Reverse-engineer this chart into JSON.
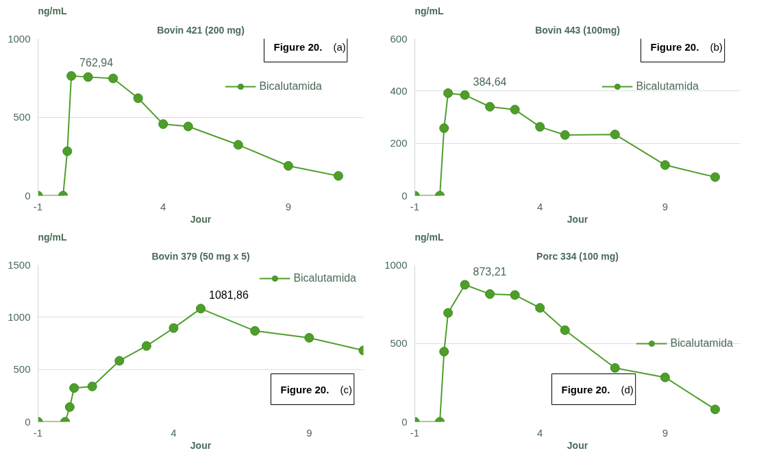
{
  "chart_data": [
    {
      "type": "line",
      "title": "Bovin 421 (200 mg)",
      "ylabel": "ng/mL",
      "xlabel": "Jour",
      "x": [
        -1,
        0,
        0.17,
        0.33,
        1,
        2,
        3,
        4,
        5,
        7,
        9,
        11
      ],
      "series": [
        {
          "name": "Bicalutamida",
          "color": "#4e9e2a",
          "values": [
            0,
            0,
            283,
            762.94,
            756,
            747,
            621,
            456,
            441,
            324,
            190,
            126
          ]
        }
      ],
      "xlim": [
        -1,
        12
      ],
      "xticks": [
        -1,
        4,
        9
      ],
      "ylim": [
        0,
        1000
      ],
      "yticks": [
        0,
        500,
        1000
      ],
      "grid": "y",
      "legend": "top right",
      "marker": "circle",
      "annotations": [
        {
          "text": "762,94",
          "x": 0.33,
          "y": 762.94
        },
        "Figure 20. (a)"
      ]
    },
    {
      "type": "line",
      "title": "Bovin 443 (100mg)",
      "ylabel": "ng/mL",
      "xlabel": "Jour",
      "x": [
        -1,
        0,
        0.17,
        0.33,
        1,
        2,
        3,
        4,
        5,
        7,
        9,
        11
      ],
      "series": [
        {
          "name": "Bicalutamida",
          "color": "#4e9e2a",
          "values": [
            0,
            0,
            258,
            392,
            384.64,
            340,
            329,
            263,
            232,
            234,
            117,
            71
          ]
        }
      ],
      "xlim": [
        -1,
        12
      ],
      "xticks": [
        -1,
        4,
        9
      ],
      "ylim": [
        0,
        600
      ],
      "yticks": [
        0,
        200,
        400,
        600
      ],
      "grid": "y",
      "legend": "top right",
      "marker": "circle",
      "annotations": [
        {
          "text": "384,64",
          "x": 1,
          "y": 384.64
        },
        "Figure 20. (b)"
      ]
    },
    {
      "type": "line",
      "title": "Bovin 379 (50 mg x 5)",
      "ylabel": "ng/mL",
      "xlabel": "Jour",
      "x": [
        -1,
        0,
        0.17,
        0.33,
        1,
        2,
        3,
        4,
        5,
        7,
        9,
        11
      ],
      "series": [
        {
          "name": "Bicalutamida",
          "color": "#4e9e2a",
          "values": [
            0,
            0,
            141,
            323,
            338,
            583,
            725,
            896,
            1081.86,
            869,
            803,
            682
          ]
        }
      ],
      "xlim": [
        -1,
        11
      ],
      "xticks": [
        -1,
        4,
        9
      ],
      "ylim": [
        0,
        1500
      ],
      "yticks": [
        0,
        500,
        1000,
        1500
      ],
      "grid": "y",
      "legend": "top right",
      "marker": "circle",
      "annotations": [
        {
          "text": "1081,86",
          "x": 5,
          "y": 1081.86
        },
        "Figure 20. (c)"
      ]
    },
    {
      "type": "line",
      "title": "Porc 334 (100 mg)",
      "ylabel": "ng/mL",
      "xlabel": "Jour",
      "x": [
        -1,
        0,
        0.17,
        0.33,
        1,
        2,
        3,
        4,
        5,
        7,
        9,
        11
      ],
      "series": [
        {
          "name": "Bicalutamida",
          "color": "#4e9e2a",
          "values": [
            0,
            0,
            447,
            694,
            873.21,
            814,
            808,
            726,
            584,
            343,
            283,
            79
          ]
        }
      ],
      "xlim": [
        -1,
        12
      ],
      "xticks": [
        -1,
        4,
        9
      ],
      "ylim": [
        0,
        1000
      ],
      "yticks": [
        0,
        500,
        1000
      ],
      "grid": "y",
      "legend": "right",
      "marker": "circle",
      "annotations": [
        {
          "text": "873,21",
          "x": 1,
          "y": 873.21
        },
        "Figure 20. (d)"
      ]
    }
  ]
}
